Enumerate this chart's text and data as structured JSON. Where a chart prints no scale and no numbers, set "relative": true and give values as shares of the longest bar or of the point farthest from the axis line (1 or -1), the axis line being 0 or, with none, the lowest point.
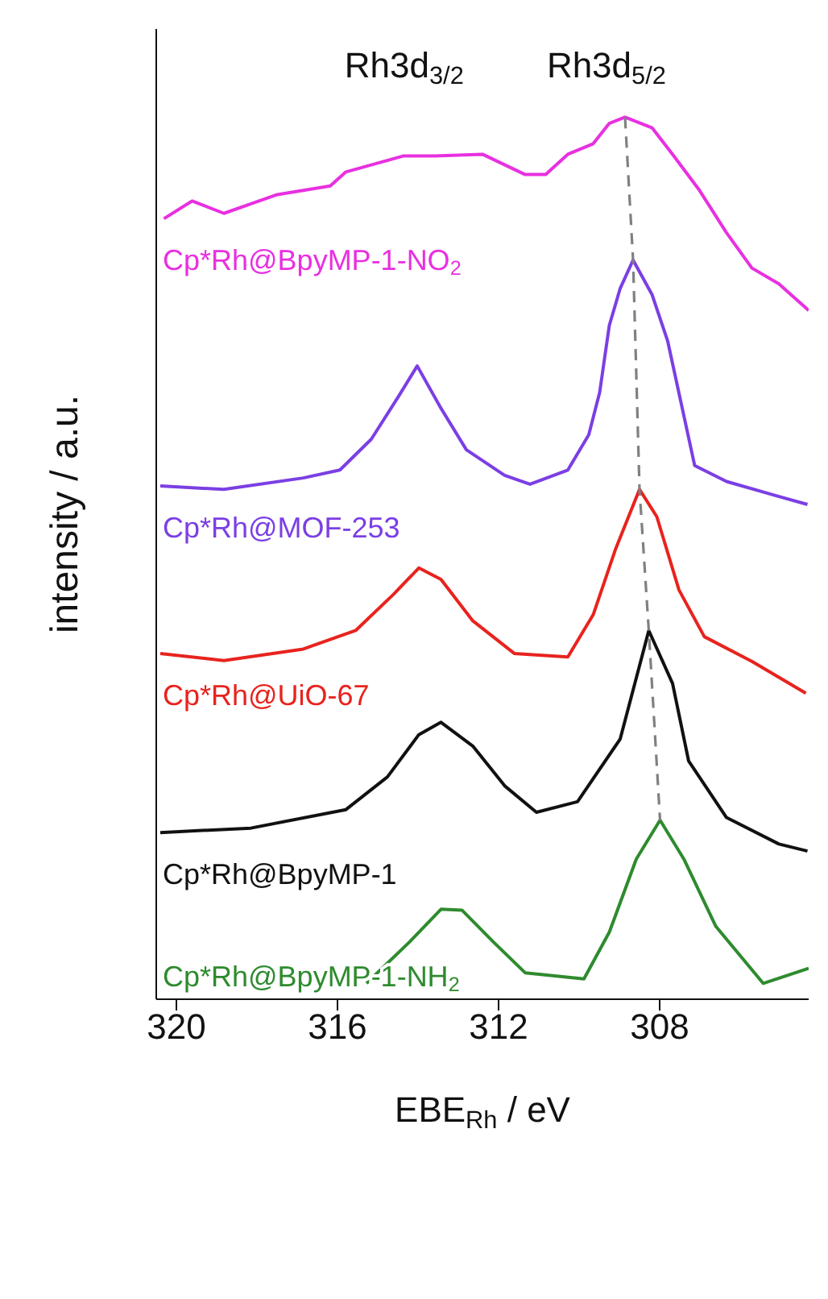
{
  "chart_data": {
    "type": "line",
    "relative": true,
    "xlabel": "EBE$_{Rh}$ / eV",
    "ylabel": "intensity / a.u.",
    "xlim": [
      320.5,
      304.3
    ],
    "xticks": [
      320,
      316,
      312,
      308
    ],
    "marker": "none",
    "annotations": [
      "Rh3d$_{3/2}$",
      "Rh3d$_{5/2}$"
    ],
    "series": [
      {
        "name": "Cp*Rh@BpyMP-1-NO$_{2}$",
        "color": "#e830e0",
        "x": [
          320.31,
          319.61,
          318.82,
          317.52,
          316.18,
          315.79,
          314.37,
          313.58,
          312.4,
          311.34,
          310.83,
          310.28,
          309.65,
          309.25,
          308.86,
          308.19,
          307.68,
          307.01,
          306.34,
          305.71,
          305.04,
          304.3
        ],
        "values": [
          0.885,
          0.905,
          0.891,
          0.912,
          0.922,
          0.938,
          0.956,
          0.956,
          0.958,
          0.935,
          0.935,
          0.958,
          0.97,
          0.993,
          1.0,
          0.988,
          0.958,
          0.917,
          0.869,
          0.829,
          0.811,
          0.781
        ]
      },
      {
        "name": "Cp*Rh@MOF-253",
        "color": "#7b3fe4",
        "x": [
          320.4,
          318.82,
          316.85,
          315.94,
          315.16,
          314.49,
          314.02,
          313.43,
          312.8,
          311.85,
          311.22,
          310.28,
          309.76,
          309.49,
          309.25,
          308.98,
          308.66,
          308.19,
          307.8,
          307.13,
          306.34,
          305.04,
          304.33
        ],
        "values": [
          0.582,
          0.578,
          0.591,
          0.6,
          0.635,
          0.683,
          0.718,
          0.67,
          0.623,
          0.594,
          0.584,
          0.6,
          0.64,
          0.688,
          0.764,
          0.806,
          0.838,
          0.799,
          0.746,
          0.605,
          0.587,
          0.57,
          0.561
        ]
      },
      {
        "name": "Cp*Rh@UiO-67",
        "color": "#e8231e",
        "x": [
          320.4,
          318.82,
          316.85,
          315.55,
          314.61,
          313.98,
          313.43,
          312.64,
          311.61,
          310.28,
          309.65,
          309.09,
          308.5,
          308.07,
          307.52,
          306.89,
          305.71,
          304.37
        ],
        "values": [
          0.392,
          0.384,
          0.397,
          0.418,
          0.459,
          0.489,
          0.476,
          0.429,
          0.392,
          0.388,
          0.436,
          0.511,
          0.578,
          0.547,
          0.464,
          0.411,
          0.383,
          0.347
        ]
      },
      {
        "name": "Cp*Rh@BpyMP-1",
        "color": "#111111",
        "x": [
          320.4,
          318.15,
          315.79,
          314.76,
          313.98,
          313.43,
          312.64,
          311.85,
          311.06,
          310.04,
          308.98,
          308.27,
          307.68,
          307.28,
          306.34,
          305.04,
          304.33
        ],
        "values": [
          0.189,
          0.194,
          0.215,
          0.252,
          0.3,
          0.314,
          0.287,
          0.242,
          0.212,
          0.224,
          0.295,
          0.418,
          0.358,
          0.27,
          0.206,
          0.176,
          0.168
        ]
      },
      {
        "name": "Cp*Rh@BpyMP-1-NH$_{2}$",
        "color": "#2e8b2e",
        "x": [
          315.28,
          314.21,
          313.43,
          312.91,
          312.13,
          311.34,
          309.88,
          309.25,
          308.58,
          307.99,
          307.4,
          306.61,
          305.43,
          304.3
        ],
        "values": [
          0.018,
          0.065,
          0.102,
          0.101,
          0.065,
          0.03,
          0.023,
          0.076,
          0.159,
          0.203,
          0.159,
          0.083,
          0.018,
          0.035
        ]
      },
      {
        "color": "#808080",
        "line_style": "dashed",
        "x": [
          308.86,
          308.66,
          308.5,
          308.27,
          307.99
        ],
        "values": [
          1.0,
          0.838,
          0.578,
          0.418,
          0.203
        ]
      }
    ]
  }
}
